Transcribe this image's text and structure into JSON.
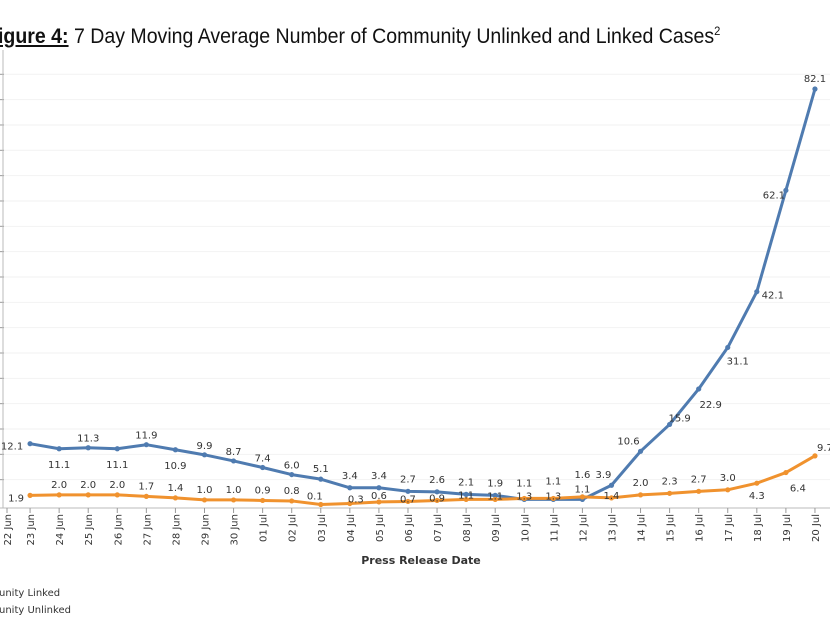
{
  "chart_data": {
    "type": "line",
    "title_prefix": "igure 4:",
    "title": "7 Day Moving Average Number of Community Unlinked and Linked Cases",
    "title_superscript": "2",
    "xlabel": "Press Release Date",
    "ylabel": "",
    "x_tick_labels": [
      "22 Jun",
      "23 Jun",
      "24 Jun",
      "25 Jun",
      "26 Jun",
      "27 Jun",
      "28 Jun",
      "29 Jun",
      "30 Jun",
      "01 Jul",
      "02 Jul",
      "03 Jul",
      "04 Jul",
      "05 Jul",
      "06 Jul",
      "07 Jul",
      "08 Jul",
      "09 Jul",
      "10 Jul",
      "11 Jul",
      "12 Jul",
      "13 Jul",
      "14 Jul",
      "15 Jul",
      "16 Jul",
      "17 Jul",
      "18 Jul",
      "19 Jul",
      "20 Jul"
    ],
    "x": [
      "23 Jun",
      "24 Jun",
      "25 Jun",
      "26 Jun",
      "27 Jun",
      "28 Jun",
      "29 Jun",
      "30 Jun",
      "01 Jul",
      "02 Jul",
      "03 Jul",
      "04 Jul",
      "05 Jul",
      "06 Jul",
      "07 Jul",
      "08 Jul",
      "09 Jul",
      "10 Jul",
      "11 Jul",
      "12 Jul",
      "13 Jul",
      "14 Jul",
      "15 Jul",
      "16 Jul",
      "17 Jul",
      "18 Jul",
      "19 Jul",
      "20 Jul"
    ],
    "ylim": [
      0,
      85
    ],
    "grid": true,
    "legend_position": "bottom-left",
    "series": [
      {
        "name": "unity Linked",
        "color": "#4f7bb0",
        "values": [
          12.1,
          11.1,
          11.3,
          11.1,
          11.9,
          10.9,
          9.9,
          8.7,
          7.4,
          6.0,
          5.1,
          3.4,
          3.4,
          2.7,
          2.6,
          2.1,
          1.9,
          1.1,
          1.1,
          1.1,
          3.9,
          10.6,
          15.9,
          22.9,
          31.1,
          42.1,
          62.1,
          82.1
        ]
      },
      {
        "name": "unity Unlinked",
        "color": "#f0922e",
        "values": [
          1.9,
          2.0,
          2.0,
          2.0,
          1.7,
          1.4,
          1.0,
          1.0,
          0.9,
          0.8,
          0.1,
          0.3,
          0.6,
          0.7,
          0.9,
          1.1,
          1.1,
          1.3,
          1.3,
          1.6,
          1.4,
          2.0,
          2.3,
          2.7,
          3.0,
          4.3,
          6.4,
          9.7
        ]
      }
    ]
  }
}
